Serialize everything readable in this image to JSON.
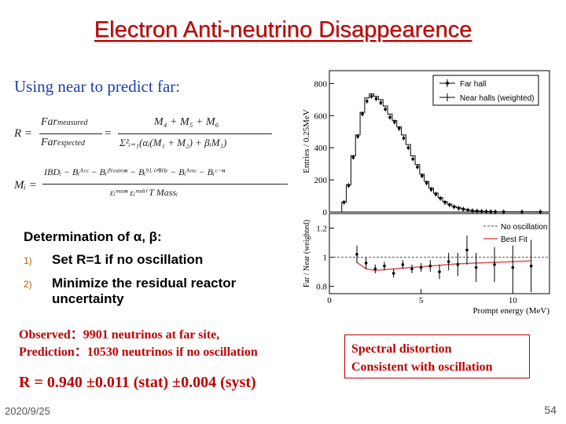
{
  "title": "Electron Anti-neutrino Disappearence",
  "subtitle": "Using near to predict  far:",
  "formulas": {
    "r_lhs": "R =",
    "r_num": "Far",
    "r_num_sub": "measured",
    "r_den": "Far",
    "r_den_sub": "expected",
    "r_rhs_num": "M₄ + M₅ + M₆",
    "r_rhs_den": "Σ²ᵢ₌₁(αᵢ(M₁ + M₂) + βᵢM₃)",
    "m_lhs": "Mᵢ =",
    "m_num": "IBDᵢ − Bᵢᴬᶜᶜ − Bᵢᶠᴺᵉᵘᵗʳᵒⁿ − Bᵢ⁹ᴸⁱᐟ⁸ᴴᵉ − Bᵢᴬᵐᶜ − Bᵢᶜ⁻ⁿ",
    "m_den": "εᵢᵐᵘᵒⁿ εᵢᵐᵘˡᵗⁱ T Massᵢ"
  },
  "determination": {
    "heading": "Determination of α, β:",
    "items": [
      {
        "num": "1)",
        "text": "Set R=1 if no oscillation"
      },
      {
        "num": "2)",
        "text": "Minimize the residual reactor uncertainty"
      }
    ]
  },
  "observed": "Observed：9901 neutrinos at far site,",
  "prediction": "Prediction：10530 neutrinos if no oscillation",
  "result": "R = 0.940 ±0.011 (stat) ±0.004 (syst)",
  "spectral": [
    "Spectral distortion",
    "Consistent with oscillation"
  ],
  "date": "2020/9/25",
  "page_number": "54",
  "colors": {
    "title": "#c00000",
    "subtitle": "#1f3fb0",
    "accent": "#c00000",
    "best_fit": "#e05050"
  },
  "chart_data": [
    {
      "type": "line",
      "ylabel": "Entries / 0.25MeV",
      "yticks": [
        0,
        200,
        400,
        600,
        800
      ],
      "ylim": [
        0,
        880
      ],
      "xlim": [
        0,
        12
      ],
      "legend_position": "top-right",
      "series": [
        {
          "name": "Far hall",
          "marker": "point",
          "x": [
            0.8,
            1.05,
            1.3,
            1.55,
            1.8,
            2.05,
            2.3,
            2.55,
            2.8,
            3.05,
            3.3,
            3.55,
            3.8,
            4.05,
            4.3,
            4.55,
            4.8,
            5.05,
            5.3,
            5.55,
            5.8,
            6.05,
            6.3,
            6.55,
            6.8,
            7.05,
            7.3,
            7.55,
            7.8,
            8.05,
            8.3,
            8.55,
            8.8,
            9.05,
            9.5,
            10.5,
            11.5
          ],
          "values": [
            60,
            165,
            340,
            470,
            610,
            690,
            720,
            705,
            680,
            640,
            590,
            560,
            520,
            460,
            400,
            330,
            280,
            225,
            180,
            140,
            110,
            85,
            60,
            45,
            32,
            24,
            18,
            12,
            8,
            6,
            4,
            3,
            2,
            1,
            1,
            1,
            1
          ]
        },
        {
          "name": "Near halls (weighted)",
          "marker": "step",
          "x": [
            0.8,
            1.05,
            1.3,
            1.55,
            1.8,
            2.05,
            2.3,
            2.55,
            2.8,
            3.05,
            3.3,
            3.55,
            3.8,
            4.05,
            4.3,
            4.55,
            4.8,
            5.05,
            5.3,
            5.55,
            5.8,
            6.05,
            6.3,
            6.55,
            6.8,
            7.05,
            7.3,
            7.55,
            7.8,
            8.05,
            8.3,
            8.55,
            8.8,
            9.05,
            9.5,
            10.5,
            11.5
          ],
          "values": [
            62,
            170,
            350,
            480,
            620,
            710,
            735,
            720,
            700,
            660,
            610,
            570,
            530,
            480,
            420,
            350,
            295,
            235,
            190,
            150,
            118,
            90,
            65,
            48,
            35,
            26,
            19,
            13,
            9,
            6,
            4,
            3,
            2,
            1,
            1,
            1,
            1
          ]
        }
      ]
    },
    {
      "type": "scatter",
      "xlabel": "Prompt energy (MeV)",
      "ylabel": "Far / Near (weighted)",
      "xticks": [
        0,
        5,
        10
      ],
      "yticks": [
        0.8,
        1,
        1.2
      ],
      "xlim": [
        0,
        12
      ],
      "ylim": [
        0.75,
        1.3
      ],
      "legend_position": "top-right",
      "series": [
        {
          "name": "No oscillation",
          "x": [
            0,
            12
          ],
          "values": [
            1,
            1
          ]
        },
        {
          "name": "Best Fit",
          "x": [
            1.5,
            2,
            2.5,
            3,
            3.5,
            4,
            5,
            6,
            7,
            8,
            9,
            10,
            11
          ],
          "values": [
            0.965,
            0.92,
            0.91,
            0.915,
            0.92,
            0.925,
            0.935,
            0.945,
            0.955,
            0.96,
            0.965,
            0.97,
            0.975
          ]
        },
        {
          "name": "Data",
          "x": [
            1.5,
            2,
            2.5,
            3,
            3.5,
            4,
            4.5,
            5,
            5.5,
            6,
            6.5,
            7,
            7.5,
            8,
            9,
            10,
            11
          ],
          "values": [
            1.02,
            0.96,
            0.92,
            0.94,
            0.89,
            0.95,
            0.92,
            0.93,
            0.94,
            0.9,
            0.97,
            0.95,
            1.05,
            0.93,
            0.95,
            0.93,
            0.94
          ],
          "errors": [
            0.06,
            0.04,
            0.03,
            0.03,
            0.03,
            0.03,
            0.03,
            0.03,
            0.04,
            0.05,
            0.06,
            0.08,
            0.1,
            0.1,
            0.12,
            0.15,
            0.18
          ]
        }
      ]
    }
  ]
}
